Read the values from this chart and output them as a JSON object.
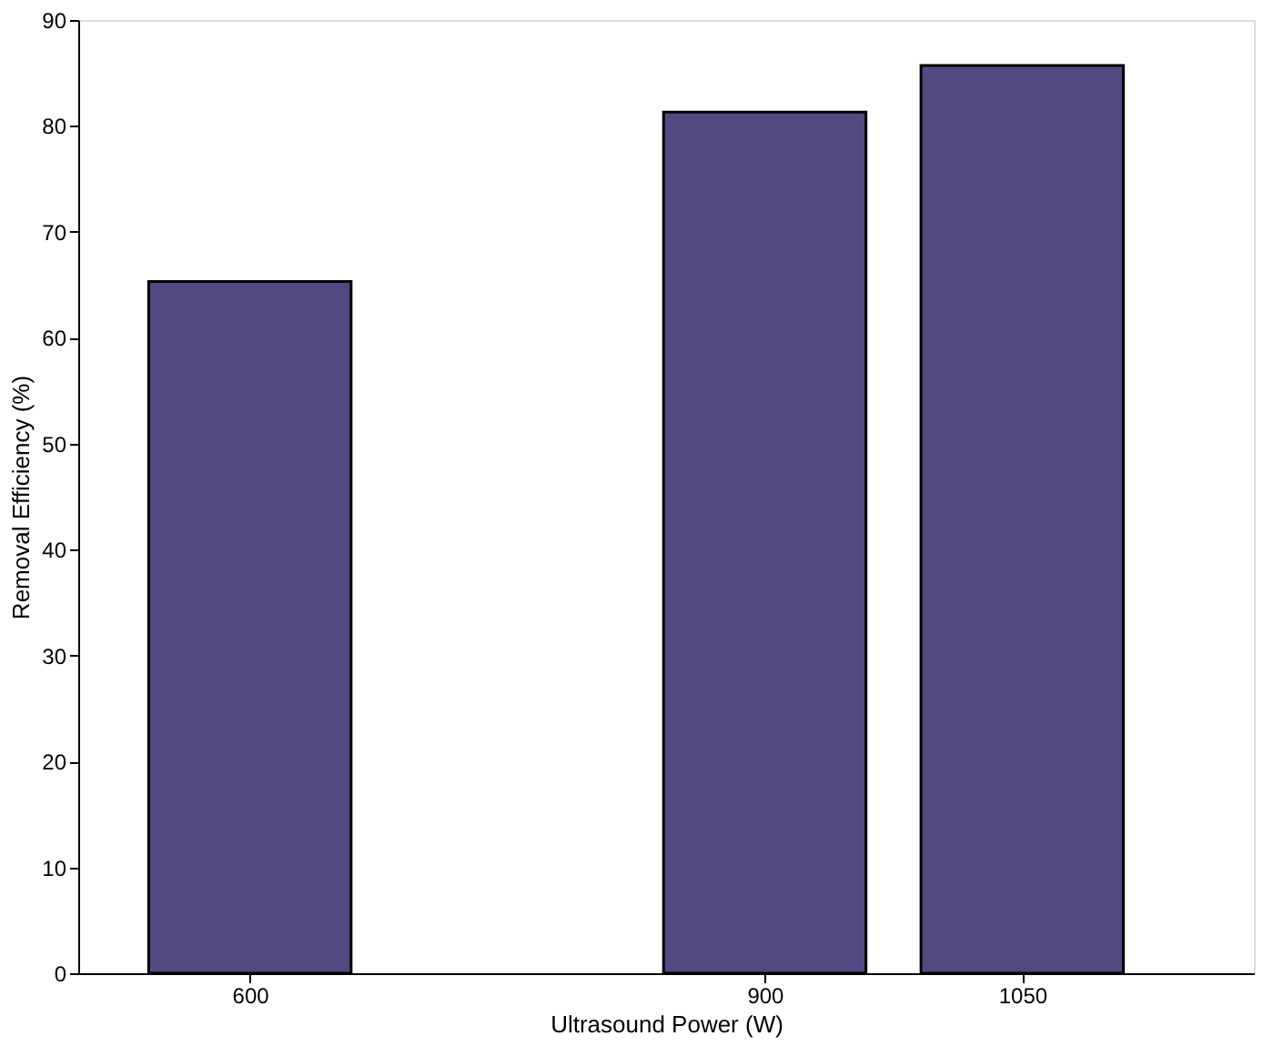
{
  "chart_data": {
    "type": "bar",
    "xlabel": "Ultrasound Power (W)",
    "ylabel": "Removal Efficiency (%)",
    "x": [
      600,
      900,
      1050
    ],
    "values": [
      65.3,
      81.3,
      85.7
    ],
    "color": "#524983",
    "xlim": [
      500,
      1185
    ],
    "xticks": [
      600,
      900,
      1050
    ],
    "ylim": [
      0,
      90
    ],
    "yticks": [
      0,
      10,
      20,
      30,
      40,
      50,
      60,
      70,
      80,
      90
    ],
    "grid": false
  }
}
